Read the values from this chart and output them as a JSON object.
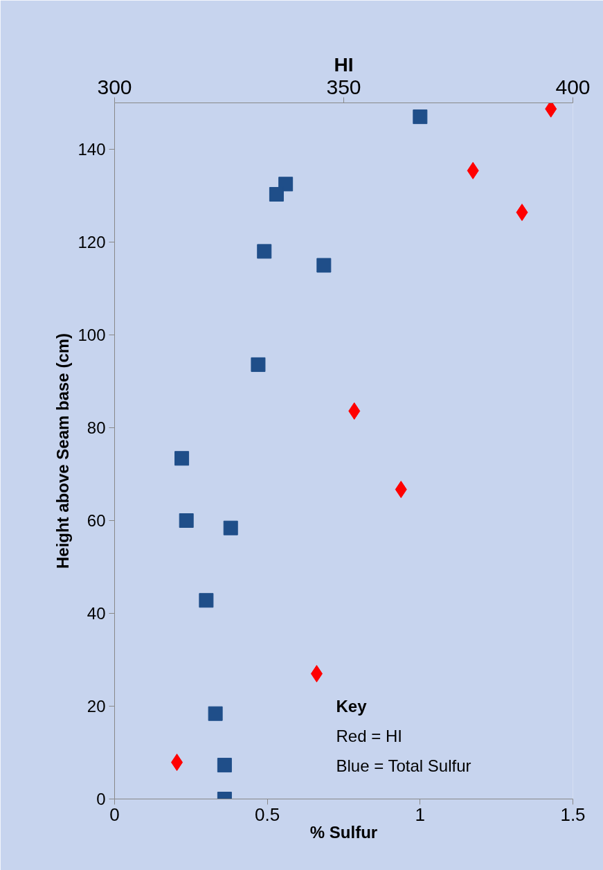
{
  "chart_data": {
    "type": "scatter",
    "xlabel": "% Sulfur",
    "x2label": "HI",
    "ylabel": "Height above Seam base (cm)",
    "xlim": [
      0,
      1.5
    ],
    "xticks": [
      0,
      0.5,
      1,
      1.5
    ],
    "x2lim": [
      300,
      400
    ],
    "x2ticks": [
      300,
      350,
      400
    ],
    "ylim": [
      0,
      150
    ],
    "yticks": [
      0,
      20,
      40,
      60,
      80,
      100,
      120,
      140
    ],
    "grid": false,
    "series": [
      {
        "color": "#1f4e89",
        "marker": "square",
        "x": [
          1.0,
          0.56,
          0.53,
          0.49,
          0.685,
          0.47,
          0.22,
          0.235,
          0.38,
          0.3,
          0.33,
          0.36,
          0.36
        ],
        "values": [
          147,
          132.5,
          130.3,
          118,
          115,
          93.6,
          73.4,
          60,
          58.4,
          42.8,
          18.4,
          7.3,
          0
        ]
      },
      {
        "color": "#ff0000",
        "marker": "diamond",
        "axis": "x2",
        "x": [
          395.2,
          378.2,
          388.9,
          352.3,
          362.5,
          344.1,
          313.6
        ],
        "values": [
          148.7,
          135.4,
          126.4,
          83.6,
          66.7,
          27,
          7.9
        ]
      }
    ],
    "annotations": [
      "Key",
      "Red = HI",
      "Blue = Total Sulfur"
    ]
  }
}
